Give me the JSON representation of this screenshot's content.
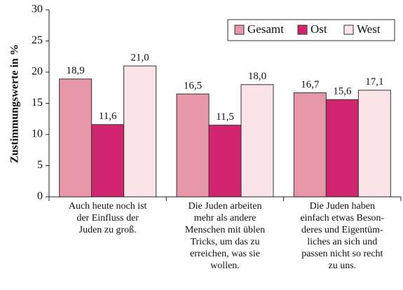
{
  "chart_data": {
    "type": "bar",
    "ylabel": "Zustimmungswerte in %",
    "categories": [
      "Auch heute noch ist\nder Einfluss der\nJuden zu groß.",
      "Die Juden arbeiten\nmehr als andere\nMenschen mit üblen\nTricks, um das zu\nerreichen, was sie\nwollen.",
      "Die Juden haben\neinfach etwas Beson-\nderes und Eigentüm-\nliches an sich und\npassen nicht so recht\nzu uns."
    ],
    "series": [
      {
        "name": "Gesamt",
        "color": "#e597a8",
        "values": [
          18.9,
          16.5,
          16.7
        ],
        "value_labels": [
          "18,9",
          "16,5",
          "16,7"
        ]
      },
      {
        "name": "Ost",
        "color": "#d1256f",
        "values": [
          11.6,
          11.5,
          15.6
        ],
        "value_labels": [
          "11,6",
          "11,5",
          "15,6"
        ]
      },
      {
        "name": "West",
        "color": "#fbe4e9",
        "values": [
          21.0,
          18.0,
          17.1
        ],
        "value_labels": [
          "21,0",
          "18,0",
          "17,1"
        ]
      }
    ],
    "ylim": [
      0,
      30
    ],
    "yticks": [
      0,
      5,
      10,
      15,
      20,
      25,
      30
    ],
    "legend": "upper right"
  }
}
